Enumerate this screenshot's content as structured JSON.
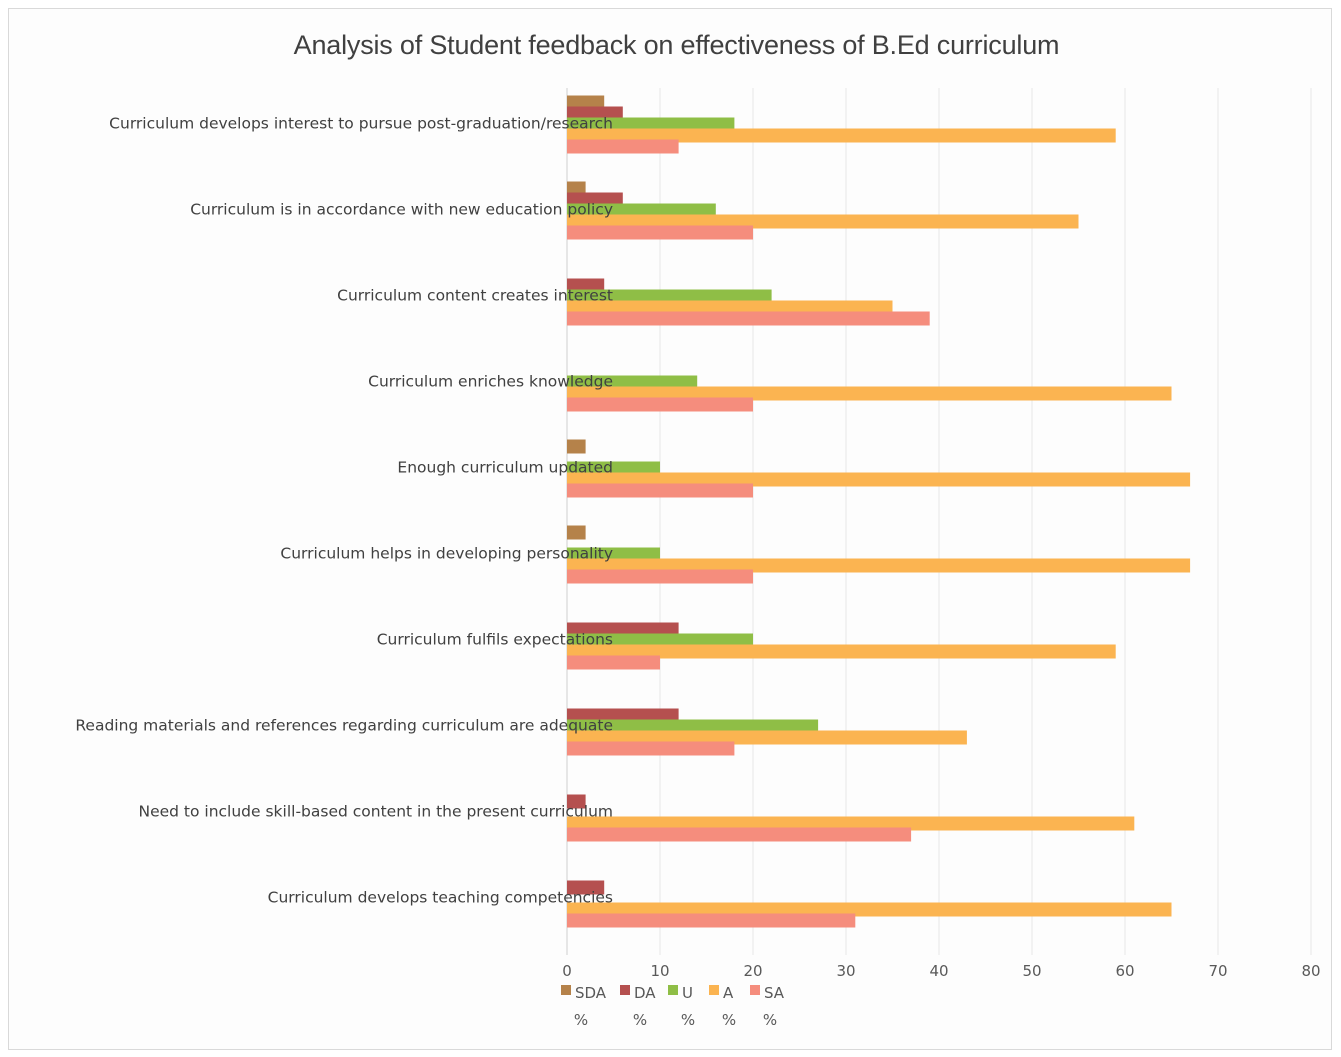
{
  "chart_data": {
    "type": "bar",
    "orientation": "horizontal",
    "title": "Analysis of Student feedback on effectiveness of B.Ed curriculum",
    "xlabel": "",
    "ylabel": "",
    "xlim": [
      0,
      80
    ],
    "x_ticks": [
      "0",
      "10",
      "20",
      "30",
      "40",
      "50",
      "60",
      "70",
      "80"
    ],
    "grid": "vertical",
    "legend_position": "bottom",
    "categories": [
      "Curriculum develops interest to pursue post-graduation/research",
      "Curriculum is in accordance with new education policy",
      "Curriculum content creates interest",
      "Curriculum enriches knowledge",
      "Enough curriculum updated",
      "Curriculum helps in developing personality",
      "Curriculum fulfils expectations",
      "Reading materials and references regarding curriculum are adequate",
      "Need to include skill-based content in the present curriculum",
      "Curriculum develops teaching competencies"
    ],
    "series": [
      {
        "name": "SDA",
        "unit": "%",
        "color": "#b5824a",
        "values": [
          4,
          2,
          0,
          0,
          2,
          2,
          0,
          0,
          0,
          0
        ]
      },
      {
        "name": "DA",
        "unit": "%",
        "color": "#b5504f",
        "values": [
          6,
          6,
          4,
          0,
          0,
          0,
          12,
          12,
          2,
          4
        ]
      },
      {
        "name": "U",
        "unit": "%",
        "color": "#8fbe46",
        "values": [
          18,
          16,
          22,
          14,
          10,
          10,
          20,
          27,
          0,
          0
        ]
      },
      {
        "name": "A",
        "unit": "%",
        "color": "#fbb451",
        "values": [
          59,
          55,
          35,
          65,
          67,
          67,
          59,
          43,
          61,
          65
        ]
      },
      {
        "name": "SA",
        "unit": "%",
        "color": "#f58d7d",
        "values": [
          12,
          20,
          39,
          20,
          20,
          20,
          10,
          18,
          37,
          31
        ]
      }
    ]
  }
}
